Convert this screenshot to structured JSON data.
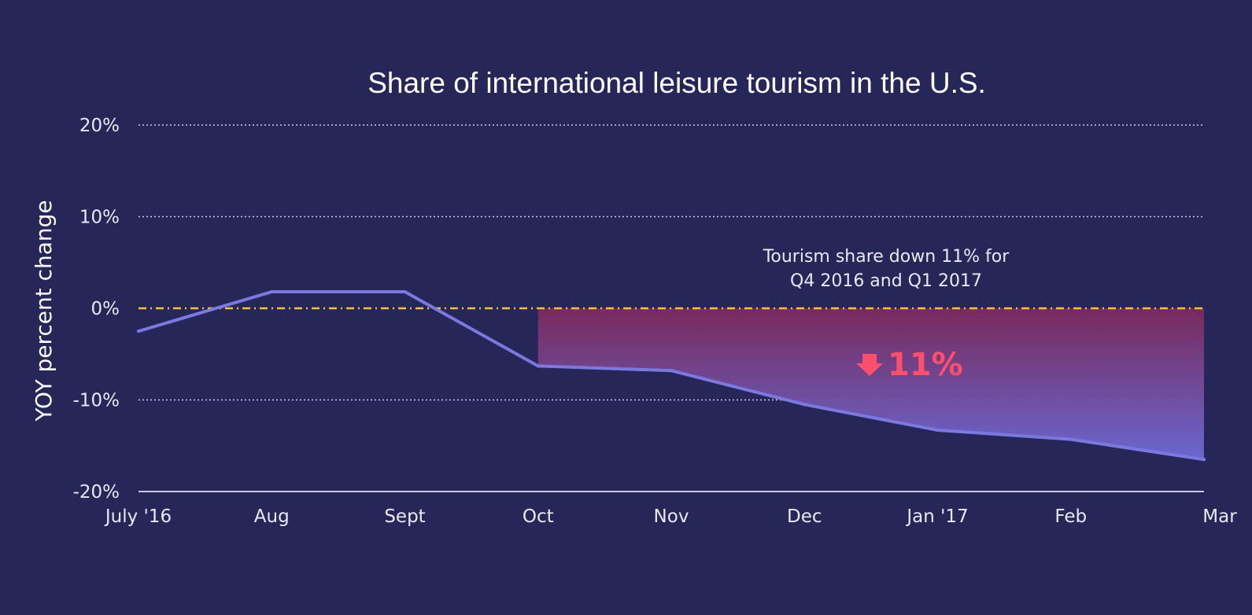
{
  "chart_data": {
    "type": "line",
    "title": "Share of international leisure tourism in the U.S.",
    "xlabel": "",
    "ylabel": "YOY percent change",
    "categories": [
      "July '16",
      "Aug",
      "Sept",
      "Oct",
      "Nov",
      "Dec",
      "Jan '17",
      "Feb",
      "Mar"
    ],
    "series": [
      {
        "values": [
          -2.5,
          1.8,
          1.8,
          -6.3,
          -6.8,
          -10.5,
          -13.3,
          -14.3,
          -16.5
        ]
      }
    ],
    "ylim": [
      -20,
      20
    ],
    "yticks": [
      20,
      10,
      0,
      -10,
      -20
    ],
    "ytick_labels": [
      "20%",
      "10%",
      "0%",
      "-10%",
      "-20%"
    ],
    "grid": true,
    "reference_line": {
      "value": 0,
      "color": "#f2c33a"
    },
    "highlight_region": {
      "from": "Oct",
      "to": "Mar",
      "color_top": "#7b2a5c",
      "color_bottom": "#6d6bd6"
    },
    "annotation": {
      "lines": [
        "Tourism share down 11% for",
        "Q4 2016 and Q1 2017"
      ]
    },
    "callout": {
      "text": "11%",
      "icon": "down-arrow-icon"
    },
    "colors": {
      "background": "#272658",
      "line": "#7b78e0",
      "grid": "#c9c8e6",
      "callout": "#ff4f6d"
    }
  }
}
